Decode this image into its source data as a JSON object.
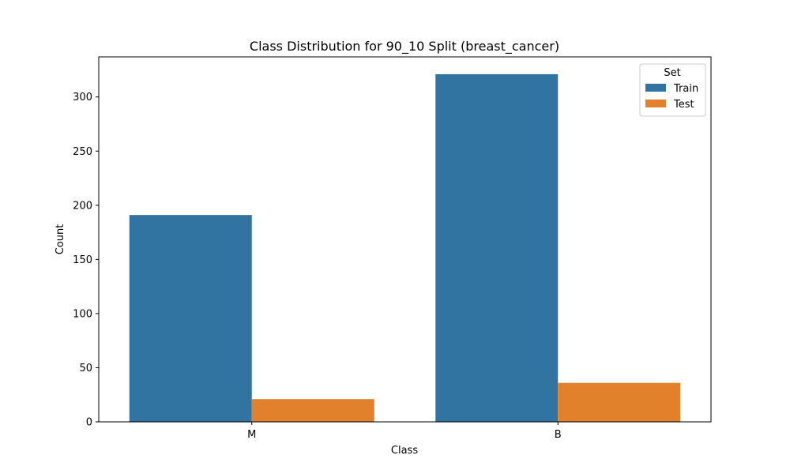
{
  "chart_data": {
    "type": "bar",
    "title": "Class Distribution for 90_10 Split (breast_cancer)",
    "xlabel": "Class",
    "ylabel": "Count",
    "categories": [
      "M",
      "B"
    ],
    "series": [
      {
        "name": "Train",
        "values": [
          191,
          321
        ],
        "color": "#3274a1"
      },
      {
        "name": "Test",
        "values": [
          21,
          36
        ],
        "color": "#e1812c"
      }
    ],
    "ylim": [
      0,
      337
    ],
    "yticks": [
      0,
      50,
      100,
      150,
      200,
      250,
      300
    ],
    "grid": false,
    "legend": {
      "title": "Set",
      "position": "top-right"
    }
  }
}
